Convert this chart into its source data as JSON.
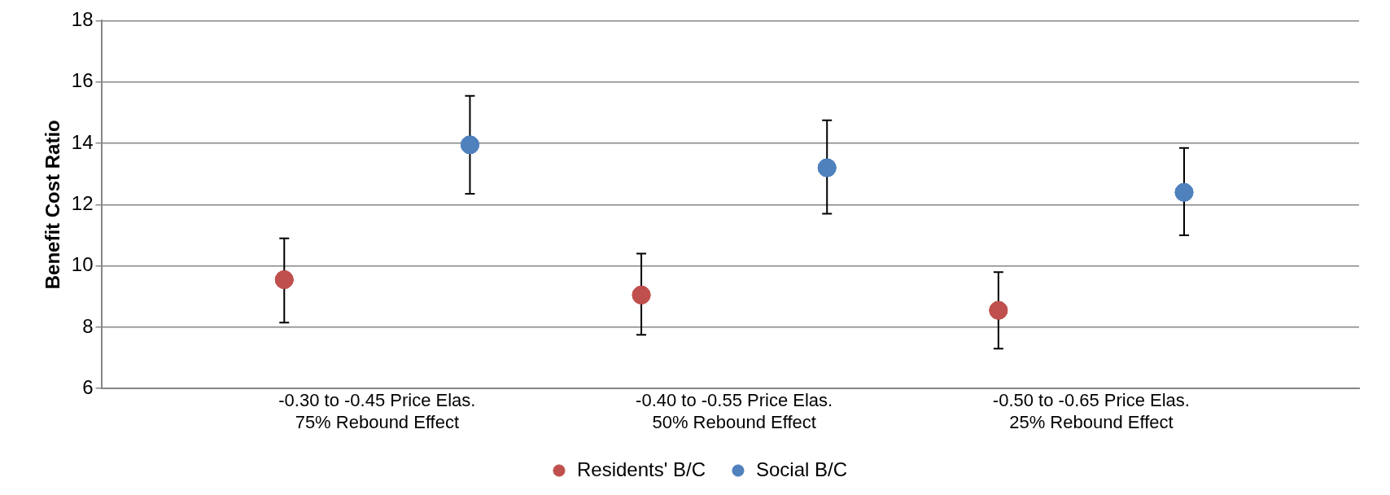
{
  "chart_data": {
    "type": "scatter",
    "ylabel": "Benefit Cost Ratio",
    "categories": [
      "-0.30 to -0.45 Price Elas.\n75% Rebound Effect",
      "-0.40 to -0.55 Price Elas.\n50% Rebound Effect",
      "-0.50 to -0.65 Price Elas.\n25% Rebound Effect"
    ],
    "series": [
      {
        "name": "Residents' B/C",
        "color": "#c0504d",
        "values": [
          9.55,
          9.05,
          8.55
        ],
        "errors": [
          [
            8.15,
            10.9
          ],
          [
            7.75,
            10.4
          ],
          [
            7.3,
            9.8
          ]
        ]
      },
      {
        "name": "Social B/C",
        "color": "#4f81bd",
        "values": [
          13.95,
          13.2,
          12.4
        ],
        "errors": [
          [
            12.35,
            15.55
          ],
          [
            11.7,
            14.75
          ],
          [
            11.0,
            13.85
          ]
        ]
      }
    ],
    "ylim": [
      6,
      18
    ],
    "yticks": [
      6,
      8,
      10,
      12,
      14,
      16,
      18
    ],
    "grid": "y",
    "legend": "bottom",
    "marker": "circle"
  }
}
